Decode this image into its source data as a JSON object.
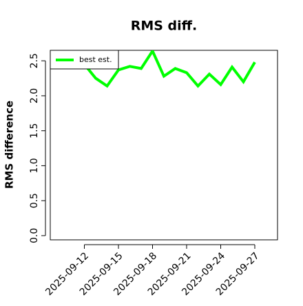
{
  "chart_data": {
    "type": "line",
    "title": "RMS diff.",
    "y_label": "RMS difference",
    "x": [
      "2025-09-12",
      "2025-09-13",
      "2025-09-14",
      "2025-09-15",
      "2025-09-16",
      "2025-09-17",
      "2025-09-18",
      "2025-09-19",
      "2025-09-20",
      "2025-09-21",
      "2025-09-22",
      "2025-09-23",
      "2025-09-24",
      "2025-09-25",
      "2025-09-26",
      "2025-09-27"
    ],
    "series": [
      {
        "name": "best est.",
        "color": "#00ff00",
        "values": [
          2.45,
          2.25,
          2.14,
          2.37,
          2.42,
          2.39,
          2.64,
          2.28,
          2.39,
          2.33,
          2.14,
          2.31,
          2.16,
          2.41,
          2.2,
          2.48
        ]
      }
    ],
    "xlim": [
      "2025-09-09",
      "2025-09-29"
    ],
    "xticks": [
      "2025-09-12",
      "2025-09-15",
      "2025-09-18",
      "2025-09-21",
      "2025-09-24",
      "2025-09-27"
    ],
    "ylim": [
      -0.06,
      2.65
    ],
    "yticks": [
      {
        "value": 0,
        "label": "0.0"
      },
      0.5,
      {
        "value": 1,
        "label": "1.0"
      },
      1.5,
      {
        "value": 2,
        "label": "2.0"
      },
      2.5
    ],
    "legend": "top-left"
  }
}
